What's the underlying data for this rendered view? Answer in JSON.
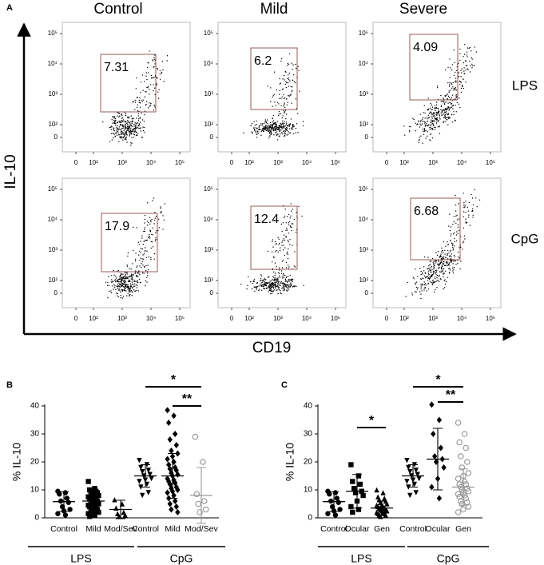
{
  "chart_data": [
    {
      "type": "flow",
      "label": "A",
      "columns": [
        "Control",
        "Mild",
        "Severe"
      ],
      "rows": [
        "LPS",
        "CpG"
      ],
      "xlabel": "CD19",
      "ylabel": "IL-10",
      "xticks": [
        0,
        {
          "value": 100,
          "label": "10²"
        },
        {
          "value": 1000,
          "label": "10³"
        },
        {
          "value": 10000,
          "label": "10⁴"
        },
        {
          "value": 100000,
          "label": "10⁵"
        }
      ],
      "yticks": [
        0,
        {
          "value": 100,
          "label": "10²"
        },
        {
          "value": 1000,
          "label": "10³"
        },
        {
          "value": 10000,
          "label": "10⁴"
        },
        {
          "value": 100000,
          "label": "10⁵"
        }
      ],
      "gates": [
        [
          7.31,
          6.2,
          4.09
        ],
        [
          17.9,
          12.4,
          6.68
        ]
      ]
    },
    {
      "type": "dot",
      "label": "B",
      "ylabel": "% IL-10",
      "ylim": [
        0,
        40
      ],
      "yticks": [
        0,
        10,
        20,
        30,
        40
      ],
      "treatments": [
        {
          "name": "LPS",
          "groups": [
            {
              "name": "Control",
              "marker": "circle",
              "color": "#000000",
              "filled": true,
              "mean": 5.8,
              "sd": 3.5,
              "values": [
                9.5,
                9,
                8.5,
                7,
                6,
                5.5,
                4,
                3,
                2.5,
                1.5,
                1
              ]
            },
            {
              "name": "Mild",
              "marker": "square",
              "color": "#000000",
              "filled": true,
              "mean": 6,
              "sd": 4,
              "values": [
                13,
                10.5,
                10,
                9.5,
                9,
                9,
                8.5,
                8,
                8,
                7.5,
                7,
                7,
                6.5,
                6,
                6,
                5.5,
                5,
                5,
                4.5,
                4,
                4,
                3.5,
                3,
                3,
                2.5,
                2,
                2,
                1.5,
                1,
                0.5
              ]
            },
            {
              "name": "Mod/Sev",
              "marker": "triangle",
              "color": "#000000",
              "filled": true,
              "mean": 3,
              "sd": 3.3,
              "values": [
                6.5,
                5,
                3.5,
                2,
                1.5,
                1,
                0.5
              ]
            }
          ]
        },
        {
          "name": "CpG",
          "groups": [
            {
              "name": "Control",
              "marker": "triangle-down",
              "color": "#000000",
              "filled": true,
              "mean": 15,
              "sd": 4,
              "values": [
                20.5,
                19,
                18,
                17,
                16.5,
                15.5,
                15,
                14,
                13.5,
                13,
                12,
                11,
                9,
                8
              ]
            },
            {
              "name": "Mild",
              "marker": "diamond",
              "color": "#000000",
              "filled": true,
              "mean": 15,
              "sd": 8,
              "values": [
                38.5,
                36.5,
                34,
                30,
                28,
                26,
                24,
                23,
                22,
                21,
                20,
                19,
                18,
                17.5,
                17,
                16,
                15.5,
                15,
                14,
                13.5,
                13,
                12.5,
                12,
                11,
                10.5,
                10,
                9.5,
                9,
                8,
                7,
                6,
                5,
                4,
                3,
                2
              ]
            },
            {
              "name": "Mod/Sev",
              "marker": "circle",
              "color": "#999999",
              "filled": false,
              "mean": 8,
              "sd": 10,
              "values": [
                29,
                20,
                8.5,
                6,
                5,
                3,
                2
              ]
            }
          ]
        }
      ],
      "significance": [
        "*",
        "**"
      ]
    },
    {
      "type": "dot",
      "label": "C",
      "ylabel": "% IL-10",
      "ylim": [
        0,
        40
      ],
      "yticks": [
        0,
        10,
        20,
        30,
        40
      ],
      "treatments": [
        {
          "name": "LPS",
          "groups": [
            {
              "name": "Control",
              "marker": "circle",
              "color": "#000000",
              "filled": true,
              "mean": 5.8,
              "sd": 3.5,
              "values": [
                9.5,
                9,
                8.5,
                7,
                6,
                5.5,
                4,
                3,
                2.5,
                1.5,
                1
              ]
            },
            {
              "name": "Ocular",
              "marker": "square",
              "color": "#000000",
              "filled": true,
              "mean": 9.5,
              "sd": 6,
              "values": [
                19,
                15,
                13,
                12,
                10.5,
                9.5,
                9,
                8,
                6,
                4,
                3,
                2
              ]
            },
            {
              "name": "Gen",
              "marker": "triangle",
              "color": "#000000",
              "filled": true,
              "mean": 3.5,
              "sd": 2.5,
              "values": [
                10,
                9,
                7.5,
                7,
                6.5,
                6,
                5.5,
                5,
                4.5,
                4.5,
                4,
                4,
                3.5,
                3.5,
                3,
                3,
                2.5,
                2.5,
                2,
                2,
                1.5,
                1.5,
                1,
                1,
                0.5
              ]
            }
          ]
        },
        {
          "name": "CpG",
          "groups": [
            {
              "name": "Control",
              "marker": "triangle-down",
              "color": "#000000",
              "filled": true,
              "mean": 15,
              "sd": 4,
              "values": [
                20.5,
                19,
                18,
                17,
                16.5,
                15.5,
                15,
                14,
                13.5,
                13,
                12,
                11,
                9,
                8
              ]
            },
            {
              "name": "Ocular",
              "marker": "diamond",
              "color": "#000000",
              "filled": true,
              "mean": 21,
              "sd": 11,
              "values": [
                40.5,
                35,
                30,
                25,
                22,
                21,
                20,
                18,
                14,
                11,
                7
              ]
            },
            {
              "name": "Gen",
              "marker": "circle",
              "color": "#999999",
              "filled": false,
              "mean": 11,
              "sd": 6.5,
              "values": [
                34,
                30,
                27,
                25,
                22,
                20,
                18,
                16,
                15,
                14,
                13,
                12,
                12,
                11,
                10.5,
                10,
                9.5,
                9,
                8.5,
                8,
                7.5,
                7,
                6,
                5.5,
                5,
                4,
                3,
                2
              ]
            }
          ]
        }
      ],
      "significance": [
        "*",
        "*",
        "**"
      ]
    }
  ]
}
